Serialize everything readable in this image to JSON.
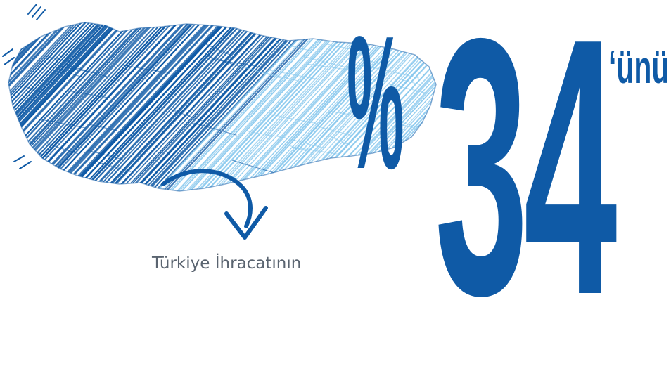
{
  "caption": "Türkiye İhracatının",
  "figure": {
    "percent_sign": "%",
    "number": "34",
    "suffix": "‘ünü"
  },
  "colors": {
    "dark_blue": "#0f5aa6",
    "light_blue": "#8ac9ee",
    "text_gray": "#5a6470"
  },
  "icons": [
    "turkey-map-icon",
    "curved-arrow-icon"
  ]
}
